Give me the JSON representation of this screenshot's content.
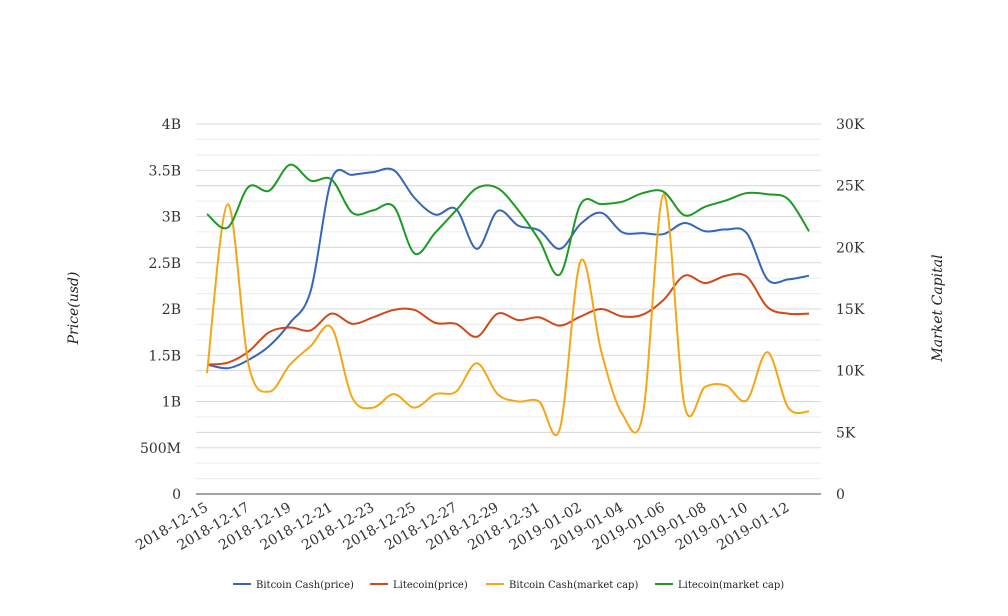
{
  "chart_data": {
    "type": "line",
    "x": [
      "2018-12-15",
      "2018-12-16",
      "2018-12-17",
      "2018-12-18",
      "2018-12-19",
      "2018-12-20",
      "2018-12-21",
      "2018-12-22",
      "2018-12-23",
      "2018-12-24",
      "2018-12-25",
      "2018-12-26",
      "2018-12-27",
      "2018-12-28",
      "2018-12-29",
      "2018-12-30",
      "2018-12-31",
      "2019-01-01",
      "2019-01-02",
      "2019-01-03",
      "2019-01-04",
      "2019-01-05",
      "2019-01-06",
      "2019-01-07",
      "2019-01-08",
      "2019-01-09",
      "2019-01-10",
      "2019-01-11",
      "2019-01-12",
      "2019-01-13"
    ],
    "x_tick_labels": [
      "2018-12-15",
      "2018-12-17",
      "2018-12-19",
      "2018-12-21",
      "2018-12-23",
      "2018-12-25",
      "2018-12-27",
      "2018-12-29",
      "2018-12-31",
      "2019-01-02",
      "2019-01-04",
      "2019-01-06",
      "2019-01-08",
      "2019-01-10",
      "2019-01-12"
    ],
    "y_left": {
      "label": "Price(usd)",
      "range": [
        0,
        4000000000
      ],
      "tick_values": [
        0,
        500000000,
        1000000000,
        1500000000,
        2000000000,
        2500000000,
        3000000000,
        3500000000,
        4000000000
      ],
      "tick_labels": [
        "0",
        "500M",
        "1B",
        "1.5B",
        "2B",
        "2.5B",
        "3B",
        "3.5B",
        "4B"
      ]
    },
    "y_right": {
      "label": "Market Capital",
      "range": [
        0,
        30000
      ],
      "tick_values": [
        0,
        5000,
        10000,
        15000,
        20000,
        25000,
        30000
      ],
      "tick_labels": [
        "0",
        "5K",
        "10K",
        "15K",
        "20K",
        "25K",
        "30K"
      ]
    },
    "grid": true,
    "legend_position": "bottom",
    "series": [
      {
        "name": "Bitcoin Cash(price)",
        "axis": "left",
        "color": "#3566b8",
        "values": [
          1400000000,
          1360000000,
          1450000000,
          1600000000,
          1850000000,
          2200000000,
          3400000000,
          3450000000,
          3480000000,
          3500000000,
          3200000000,
          3020000000,
          3080000000,
          2650000000,
          3060000000,
          2900000000,
          2850000000,
          2650000000,
          2920000000,
          3040000000,
          2830000000,
          2820000000,
          2810000000,
          2930000000,
          2840000000,
          2860000000,
          2820000000,
          2320000000,
          2320000000,
          2360000000
        ]
      },
      {
        "name": "Litecoin(price)",
        "axis": "left",
        "color": "#d24817",
        "values": [
          1400000000,
          1420000000,
          1540000000,
          1750000000,
          1800000000,
          1770000000,
          1950000000,
          1840000000,
          1910000000,
          1990000000,
          1990000000,
          1850000000,
          1840000000,
          1700000000,
          1950000000,
          1880000000,
          1910000000,
          1820000000,
          1920000000,
          2000000000,
          1920000000,
          1940000000,
          2100000000,
          2360000000,
          2280000000,
          2360000000,
          2350000000,
          2020000000,
          1950000000,
          1950000000
        ]
      },
      {
        "name": "Bitcoin Cash(market cap)",
        "axis": "right",
        "color": "#f5a615",
        "values": [
          9800,
          23500,
          10500,
          8300,
          10500,
          12000,
          13500,
          7800,
          7000,
          8100,
          7000,
          8100,
          8300,
          10600,
          8100,
          7500,
          7500,
          5300,
          18900,
          11500,
          6500,
          6500,
          24300,
          7200,
          8700,
          8800,
          7600,
          11500,
          7000,
          6700
        ]
      },
      {
        "name": "Litecoin(market cap)",
        "axis": "right",
        "color": "#1e9a24",
        "values": [
          22700,
          21600,
          24900,
          24600,
          26700,
          25400,
          25500,
          22800,
          23000,
          23300,
          19500,
          21200,
          23000,
          24800,
          24800,
          23000,
          20600,
          17800,
          23500,
          23500,
          23700,
          24400,
          24500,
          22600,
          23300,
          23800,
          24400,
          24300,
          23900,
          21300
        ]
      }
    ]
  }
}
